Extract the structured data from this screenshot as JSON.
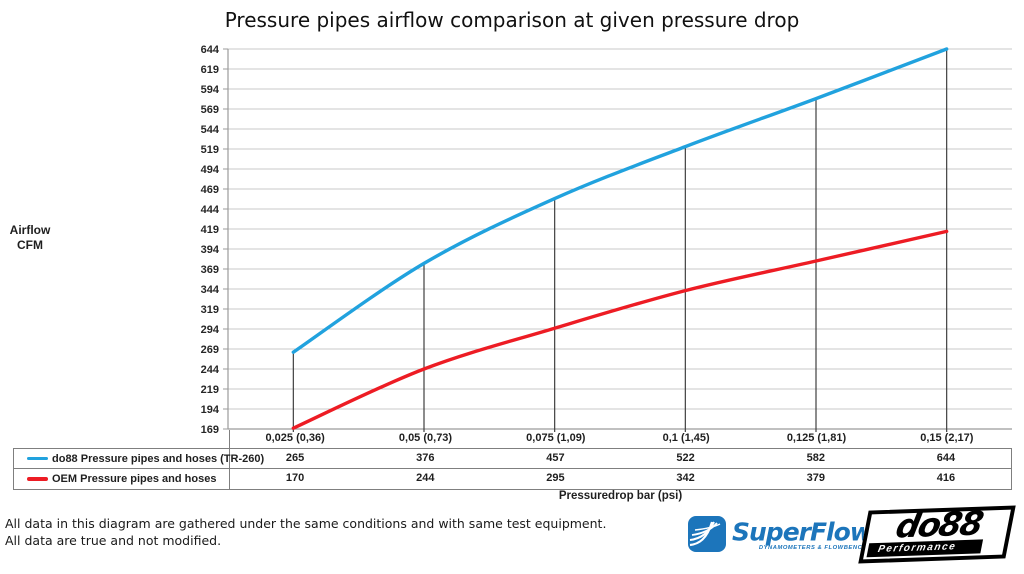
{
  "title": "Pressure pipes airflow comparison at given pressure drop",
  "y_axis": {
    "label_line1": "Airflow",
    "label_line2": "CFM"
  },
  "x_axis": {
    "title": "Pressuredrop bar (psi)"
  },
  "chart_data": {
    "type": "line",
    "title": "Pressure pipes airflow comparison at given pressure drop",
    "xlabel": "Pressuredrop bar (psi)",
    "ylabel": "Airflow CFM",
    "ylim": [
      169,
      644
    ],
    "ytick_step": 25,
    "grid": true,
    "legend_position": "table-left-of-values",
    "categories": [
      "0,025 (0,36)",
      "0,05 (0,73)",
      "0,075 (1,09)",
      "0,1 (1,45)",
      "0,125 (1,81)",
      "0,15 (2,17)"
    ],
    "series": [
      {
        "name": "do88 Pressure pipes and hoses (TR-260)",
        "color": "#21a2de",
        "values": [
          265,
          376,
          457,
          522,
          582,
          644
        ]
      },
      {
        "name": "OEM Pressure pipes and hoses",
        "color": "#ed1c24",
        "values": [
          170,
          244,
          295,
          342,
          379,
          416
        ]
      }
    ]
  },
  "footer": {
    "line1": "All data in this diagram are gathered under the same conditions and with same test equipment.",
    "line2": "All data are true and not modified."
  },
  "logos": {
    "superflow": {
      "title": "SuperFlow",
      "registered_mark": "®",
      "subtitle": "DYNAMOMETERS & FLOWBENCHES",
      "color": "#1c75bb"
    },
    "do88": {
      "title": "do88",
      "subtitle": "Performance"
    }
  },
  "colors": {
    "do88_line": "#21a2de",
    "oem_line": "#ed1c24",
    "gridline": "#c9c9c9",
    "axis": "#9b9b9b",
    "drop_line": "#3f3f3f",
    "table_border": "#7f7f7f",
    "text": "#262626"
  }
}
